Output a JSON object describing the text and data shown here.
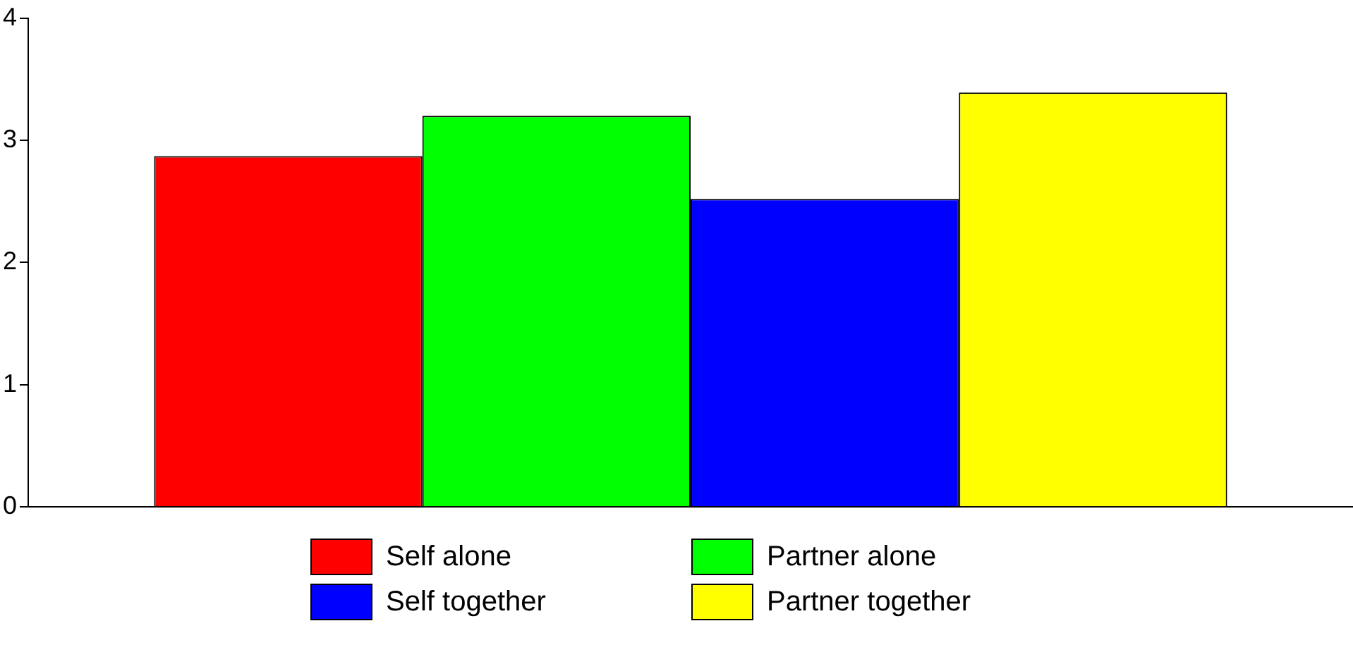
{
  "chart_data": {
    "type": "bar",
    "categories": [
      null
    ],
    "series": [
      {
        "name": "Self alone",
        "color": "#ff0000",
        "values": [
          2.87
        ]
      },
      {
        "name": "Partner alone",
        "color": "#00ff00",
        "values": [
          3.2
        ]
      },
      {
        "name": "Self together",
        "color": "#0000ff",
        "values": [
          2.52
        ]
      },
      {
        "name": "Partner together",
        "color": "#ffff00",
        "values": [
          3.39
        ]
      }
    ],
    "ylim": [
      0,
      4
    ],
    "yticks": [
      0,
      1,
      2,
      3,
      4
    ],
    "grid": false,
    "legend": "bottom"
  }
}
